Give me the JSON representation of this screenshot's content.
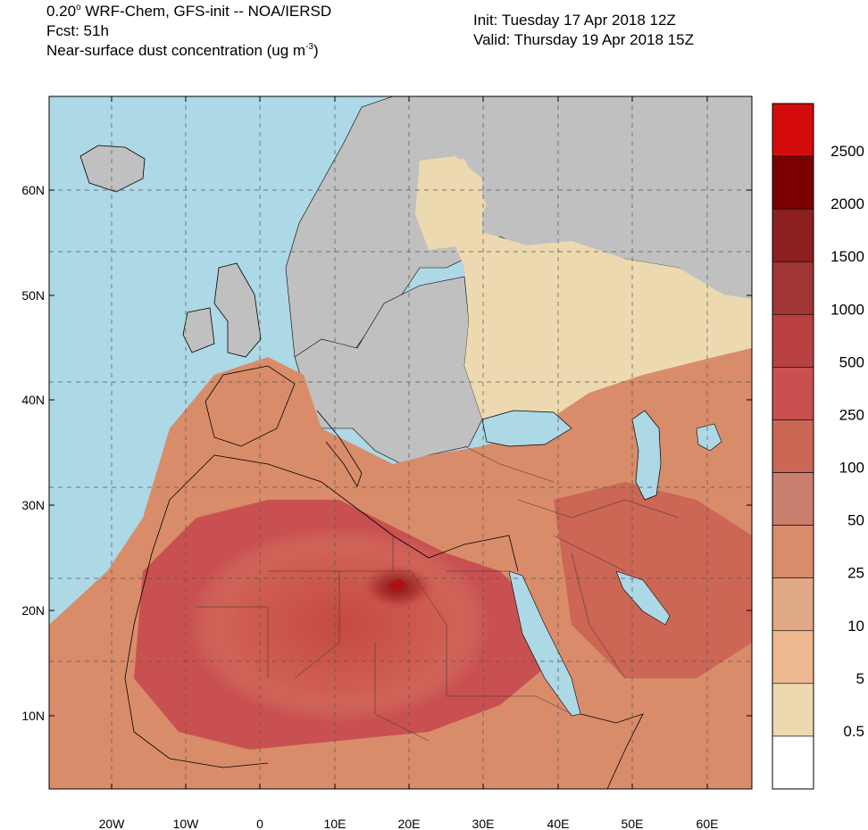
{
  "header": {
    "line1": "0.20° WRF-Chem, GFS-init -- NOA/IERSD",
    "line1_main": "0.20",
    "line1_sup": "o",
    "line1_rest": " WRF-Chem, GFS-init -- NOA/IERSD",
    "line2": "Fcst: 51h",
    "line3_main": "Near-surface dust concentration (ug m",
    "line3_sup": "-3",
    "line3_end": ")",
    "init": "Init: Tuesday 17 Apr 2018  12Z",
    "valid": "Valid: Thursday 19 Apr 2018  15Z"
  },
  "map": {
    "lat_labels": [
      "60N",
      "50N",
      "40N",
      "30N",
      "20N",
      "10N"
    ],
    "lon_labels": [
      "20W",
      "10W",
      "0",
      "10E",
      "20E",
      "30E",
      "40E",
      "50E",
      "60E"
    ],
    "colors": {
      "ocean": "#add8e6",
      "land_no_data": "#c0c0c0",
      "border": "#000000",
      "grid": "#555555"
    }
  },
  "colorbar": {
    "labels": [
      "2500",
      "2000",
      "1500",
      "1000",
      "500",
      "250",
      "100",
      "50",
      "25",
      "10",
      "5",
      "0.5"
    ],
    "colors": [
      "#d40b0b",
      "#7c0000",
      "#8c1f1f",
      "#a13535",
      "#b84040",
      "#c95050",
      "#cc6655",
      "#c97e6e",
      "#d98c6a",
      "#e0aa86",
      "#eeb890",
      "#ecd9b0",
      "#ffffff"
    ]
  }
}
